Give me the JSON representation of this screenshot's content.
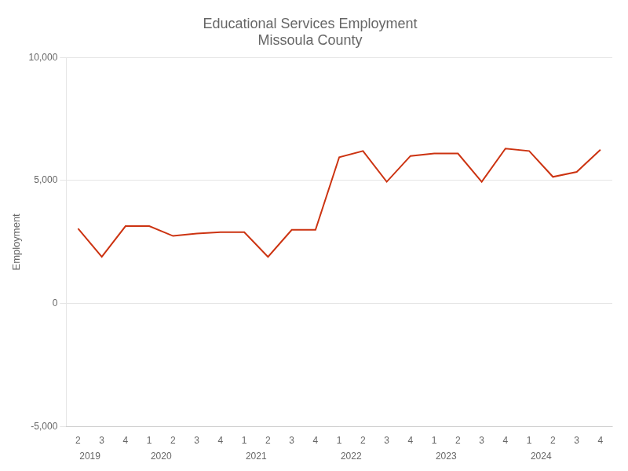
{
  "chart_data": {
    "type": "line",
    "title": "Educational Services Employment\nMissoula County",
    "ylabel": "Employment",
    "categories": [
      "2",
      "3",
      "4",
      "1",
      "2",
      "3",
      "4",
      "1",
      "2",
      "3",
      "4",
      "1",
      "2",
      "3",
      "4",
      "1",
      "2",
      "3",
      "4",
      "1",
      "2",
      "3",
      "4"
    ],
    "values": [
      3050,
      1900,
      3150,
      3150,
      2750,
      2850,
      2900,
      2900,
      1900,
      3000,
      3000,
      5950,
      6200,
      4950,
      6000,
      6100,
      6100,
      4950,
      6300,
      6200,
      5150,
      5350,
      6250
    ],
    "color": "#CC3311",
    "ylim": [
      -5000,
      10000
    ],
    "yticks": [
      {
        "value": -5000,
        "label": "-5,000"
      },
      0,
      {
        "value": 5000,
        "label": "5,000"
      },
      {
        "value": 10000,
        "label": "10,000"
      }
    ],
    "grid": true,
    "annotations": [
      {
        "text": "2019",
        "x": 0.5
      },
      {
        "text": "2020",
        "x": 3.5
      },
      {
        "text": "2021",
        "x": 7.5
      },
      {
        "text": "2022",
        "x": 11.5
      },
      {
        "text": "2023",
        "x": 15.5
      },
      {
        "text": "2024",
        "x": 19.5
      }
    ]
  }
}
